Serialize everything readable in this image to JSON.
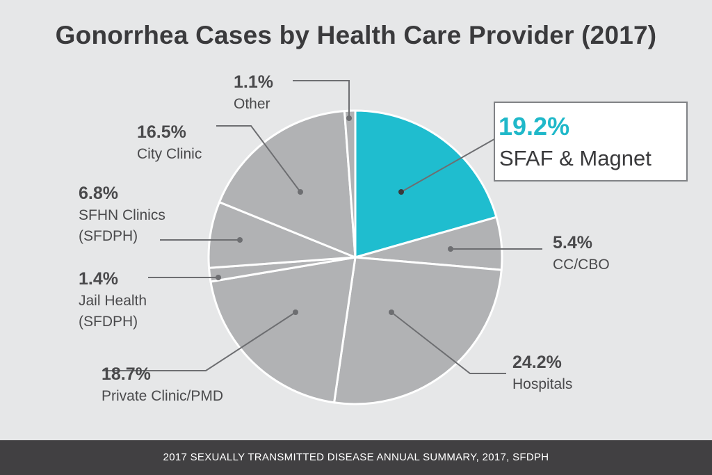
{
  "title": "Gonorrhea Cases by Health Care Provider (2017)",
  "footer": "2017 SEXUALLY TRANSMITTED DISEASE ANNUAL SUMMARY, 2017, SFDPH",
  "colors": {
    "background": "#e6e7e8",
    "slice_default": "#b1b2b4",
    "slice_highlight": "#1fbdcf",
    "highlight_text": "#1fb8c9",
    "leader_line": "#6d6e71",
    "footer_bg": "#414042"
  },
  "chart_data": {
    "type": "pie",
    "title": "Gonorrhea Cases by Health Care Provider (2017)",
    "unit": "%",
    "slices": [
      {
        "label": "SFAF & Magnet",
        "lines": [
          "SFAF & Magnet"
        ],
        "value": 19.2,
        "display": "19.2%",
        "highlight": true
      },
      {
        "label": "CC/CBO",
        "lines": [
          "CC/CBO"
        ],
        "value": 5.4,
        "display": "5.4%",
        "highlight": false
      },
      {
        "label": "Hospitals",
        "lines": [
          "Hospitals"
        ],
        "value": 24.2,
        "display": "24.2%",
        "highlight": false
      },
      {
        "label": "Private Clinic/PMD",
        "lines": [
          "Private Clinic/PMD"
        ],
        "value": 18.7,
        "display": "18.7%",
        "highlight": false
      },
      {
        "label": "Jail Health (SFDPH)",
        "lines": [
          "Jail Health",
          "(SFDPH)"
        ],
        "value": 1.4,
        "display": "1.4%",
        "highlight": false
      },
      {
        "label": "SFHN Clinics (SFDPH)",
        "lines": [
          "SFHN Clinics",
          "(SFDPH)"
        ],
        "value": 6.8,
        "display": "6.8%",
        "highlight": false
      },
      {
        "label": "City Clinic",
        "lines": [
          "City Clinic"
        ],
        "value": 16.5,
        "display": "16.5%",
        "highlight": false
      },
      {
        "label": "Other",
        "lines": [
          "Other"
        ],
        "value": 1.1,
        "display": "1.1%",
        "highlight": false
      }
    ]
  }
}
